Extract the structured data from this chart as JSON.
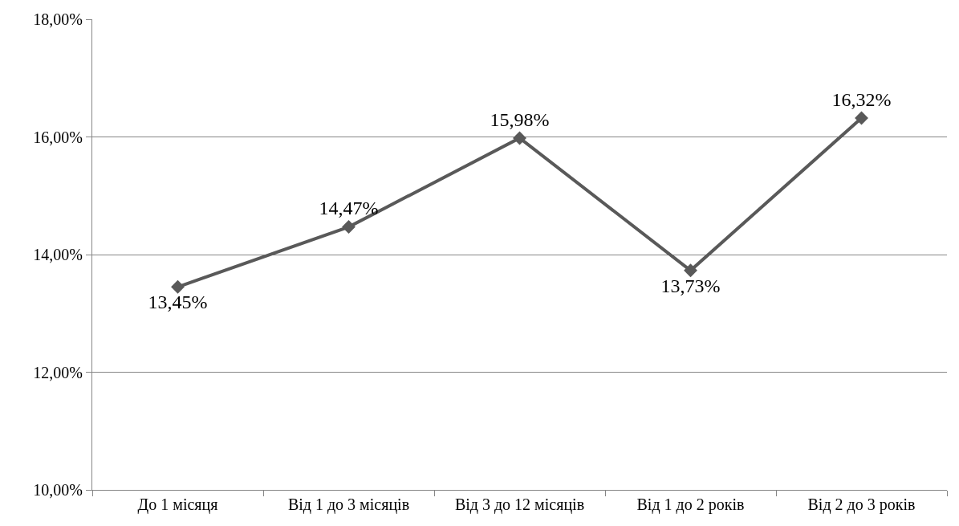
{
  "chart_data": {
    "type": "line",
    "categories": [
      "До 1 місяця",
      "Від 1 до 3 місяців",
      "Від 3 до 12 місяців",
      "Від 1 до 2 років",
      "Від 2 до 3 років"
    ],
    "series": [
      {
        "color": "#595959",
        "values": [
          13.45,
          14.47,
          15.98,
          13.73,
          16.32
        ],
        "value_labels": [
          "13,45%",
          "14,47%",
          "15,98%",
          "13,73%",
          "16,32%"
        ]
      }
    ],
    "ylim": [
      10,
      18
    ],
    "yticks": [
      {
        "value": 10,
        "label": "10,00%"
      },
      {
        "value": 12,
        "label": "12,00%"
      },
      {
        "value": 14,
        "label": "14,00%"
      },
      {
        "value": 16,
        "label": "16,00%"
      },
      {
        "value": 18,
        "label": "18,00%"
      }
    ],
    "grid": "y",
    "marker": "diamond",
    "line_style": "solid"
  }
}
